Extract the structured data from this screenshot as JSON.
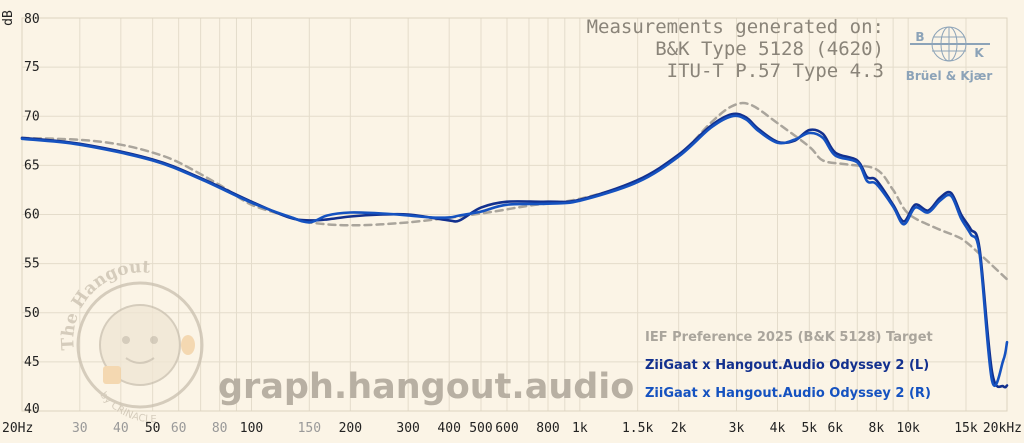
{
  "header": {
    "line1": "Measurements generated on:",
    "line2": "B&K Type 5128 (4620)",
    "line3": "ITU-T P.57 Type 4.3"
  },
  "logo": {
    "name": "Brüel & Kjær",
    "mark_left": "B",
    "mark_right": "K"
  },
  "watermark": {
    "site": "graph.hangout.audio",
    "seal_top": "The Hangout",
    "seal_bottom": "by CRINACLE"
  },
  "colors": {
    "background": "#fbf4e6",
    "target": "#aaa59c",
    "left": "#12308e",
    "right": "#1552c0",
    "grid": "#e4dccb"
  },
  "chart_data": {
    "type": "line",
    "x_scale": "log",
    "xlim": [
      20,
      20000
    ],
    "ylim": [
      40,
      80
    ],
    "ylabel": "dB",
    "grid": true,
    "legend_position": "bottom-right",
    "x_ticks": [
      {
        "v": 20,
        "label": "20Hz",
        "major": true
      },
      {
        "v": 30,
        "label": "30",
        "major": false
      },
      {
        "v": 40,
        "label": "40",
        "major": false
      },
      {
        "v": 50,
        "label": "50",
        "major": true
      },
      {
        "v": 60,
        "label": "60",
        "major": false
      },
      {
        "v": 80,
        "label": "80",
        "major": false
      },
      {
        "v": 100,
        "label": "100",
        "major": true
      },
      {
        "v": 150,
        "label": "150",
        "major": false
      },
      {
        "v": 200,
        "label": "200",
        "major": true
      },
      {
        "v": 300,
        "label": "300",
        "major": true
      },
      {
        "v": 400,
        "label": "400",
        "major": true
      },
      {
        "v": 500,
        "label": "500",
        "major": true
      },
      {
        "v": 600,
        "label": "600",
        "major": true
      },
      {
        "v": 800,
        "label": "800",
        "major": true
      },
      {
        "v": 1000,
        "label": "1k",
        "major": true
      },
      {
        "v": 1500,
        "label": "1.5k",
        "major": true
      },
      {
        "v": 2000,
        "label": "2k",
        "major": true
      },
      {
        "v": 3000,
        "label": "3k",
        "major": true
      },
      {
        "v": 4000,
        "label": "4k",
        "major": true
      },
      {
        "v": 5000,
        "label": "5k",
        "major": true
      },
      {
        "v": 6000,
        "label": "6k",
        "major": true
      },
      {
        "v": 8000,
        "label": "8k",
        "major": true
      },
      {
        "v": 10000,
        "label": "10k",
        "major": true
      },
      {
        "v": 15000,
        "label": "15k",
        "major": true
      },
      {
        "v": 20000,
        "label": "20kHz",
        "major": true
      }
    ],
    "y_ticks": [
      40,
      45,
      50,
      55,
      60,
      65,
      70,
      75,
      80
    ],
    "series": [
      {
        "name": "IEF Preference 2025 (B&K 5128) Target",
        "key": "target",
        "dashed": true,
        "x": [
          20,
          30,
          40,
          50,
          60,
          80,
          100,
          130,
          150,
          200,
          300,
          500,
          700,
          1000,
          1500,
          2000,
          2500,
          2900,
          3300,
          4000,
          5000,
          5500,
          6500,
          8000,
          9000,
          10000,
          12000,
          14000,
          15000,
          17000,
          20000
        ],
        "y": [
          67.8,
          67.6,
          67.1,
          66.3,
          65.3,
          63.0,
          61.0,
          59.8,
          59.2,
          58.9,
          59.2,
          60.1,
          60.9,
          61.6,
          63.4,
          66.0,
          69.3,
          71.0,
          71.2,
          69.3,
          66.9,
          65.5,
          65.1,
          64.6,
          62.5,
          60.1,
          58.7,
          57.8,
          57.2,
          55.6,
          53.4
        ]
      },
      {
        "name": "ZiiGaat x Hangout.Audio Odyssey 2 (L)",
        "key": "left",
        "dashed": false,
        "x": [
          20,
          30,
          50,
          70,
          100,
          130,
          150,
          170,
          200,
          250,
          300,
          350,
          400,
          430,
          500,
          600,
          800,
          1000,
          1500,
          2000,
          2500,
          2900,
          3200,
          3500,
          4000,
          4500,
          5000,
          5500,
          6000,
          7000,
          7500,
          8000,
          9000,
          9700,
          10500,
          11500,
          12500,
          13500,
          14500,
          15500,
          16500,
          18000,
          19500,
          20000
        ],
        "y": [
          67.8,
          67.2,
          65.6,
          63.7,
          61.3,
          59.7,
          59.4,
          59.5,
          59.8,
          60.0,
          60.0,
          59.7,
          59.4,
          59.4,
          60.7,
          61.3,
          61.3,
          61.5,
          63.5,
          66.1,
          69.0,
          70.2,
          69.9,
          68.7,
          67.4,
          67.5,
          68.6,
          68.2,
          66.3,
          65.5,
          63.8,
          63.5,
          61.0,
          59.3,
          61.0,
          60.4,
          61.7,
          62.2,
          60.0,
          58.5,
          56.5,
          44.0,
          42.5,
          42.6
        ]
      },
      {
        "name": "ZiiGaat x Hangout.Audio Odyssey 2 (R)",
        "key": "right",
        "dashed": false,
        "x": [
          20,
          30,
          50,
          70,
          100,
          130,
          150,
          170,
          200,
          250,
          300,
          350,
          400,
          430,
          500,
          600,
          800,
          1000,
          1500,
          2000,
          2500,
          2900,
          3200,
          3500,
          4000,
          4500,
          5000,
          5500,
          6000,
          7000,
          7500,
          8000,
          9000,
          9700,
          10500,
          11500,
          12500,
          13500,
          14500,
          15500,
          16500,
          18000,
          19500,
          20000
        ],
        "y": [
          67.7,
          67.1,
          65.5,
          63.6,
          61.2,
          59.8,
          59.2,
          59.9,
          60.2,
          60.1,
          59.9,
          59.7,
          59.7,
          59.9,
          60.3,
          61.0,
          61.1,
          61.4,
          63.3,
          65.9,
          68.8,
          70.0,
          69.7,
          68.5,
          67.3,
          67.6,
          68.3,
          67.8,
          66.0,
          65.3,
          63.4,
          63.1,
          60.8,
          59.0,
          60.7,
          60.2,
          61.4,
          61.9,
          59.6,
          58.0,
          56.0,
          43.1,
          45.2,
          47.0
        ]
      }
    ]
  }
}
